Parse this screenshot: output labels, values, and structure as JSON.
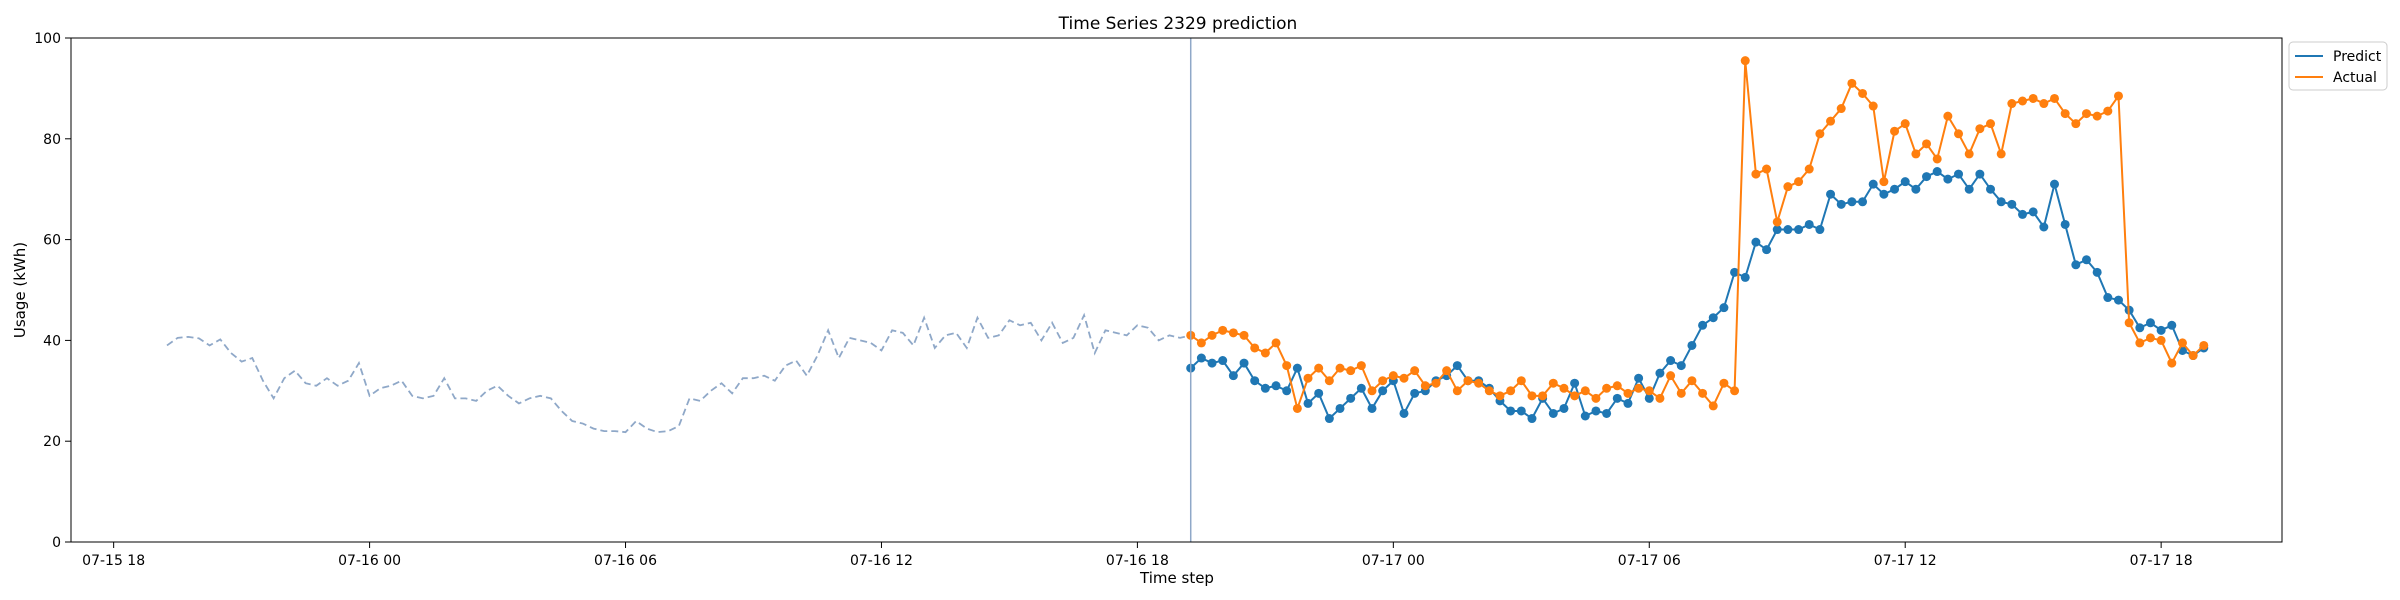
{
  "chart_data": {
    "type": "line",
    "title": "Time Series 2329 prediction",
    "xlabel": "Time step",
    "ylabel": "Usage (kWh)",
    "ylim": [
      0,
      100
    ],
    "yticks": [
      0,
      20,
      40,
      60,
      80,
      100
    ],
    "xlim": [
      "07-15 17:00",
      "07-17 20:50"
    ],
    "xticks": [
      "07-15 18",
      "07-16 00",
      "07-16 06",
      "07-16 12",
      "07-16 18",
      "07-17 00",
      "07-17 06",
      "07-17 12",
      "07-17 18"
    ],
    "grid": false,
    "legend_position": "top-right",
    "forecast_start": "07-16 19:15",
    "history": {
      "start": "07-15 19:15",
      "step_minutes": 15,
      "color": "#8fa8c8",
      "style": "dashed",
      "values": [
        39,
        40.5,
        40.7,
        40.4,
        39,
        40.2,
        37.5,
        35.8,
        36.5,
        32,
        28.5,
        32.5,
        34,
        31.5,
        31,
        32.5,
        31,
        32,
        35.5,
        29,
        30.5,
        31,
        32,
        29,
        28.5,
        29,
        32.5,
        28.5,
        28.5,
        28,
        30,
        31,
        29,
        27.5,
        28.5,
        29,
        28.5,
        26,
        24,
        23.5,
        22.5,
        22,
        22,
        21.8,
        24,
        22.5,
        21.8,
        22,
        23,
        28.5,
        28,
        30,
        31.5,
        29.5,
        32.5,
        32.5,
        33,
        32,
        35,
        36,
        33,
        37,
        42,
        36.5,
        40.5,
        40,
        39.5,
        38,
        42,
        41.5,
        39,
        44.5,
        38.5,
        41,
        41.5,
        38.5,
        44.5,
        40.5,
        41,
        44,
        43,
        43.5,
        40,
        43.5,
        39.5,
        40.5,
        45,
        37.5,
        42,
        41.5,
        41,
        43,
        42.5,
        40,
        41,
        40.5,
        41
      ]
    },
    "series": [
      {
        "name": "Predict",
        "color": "#1f77b4",
        "start": "07-16 19:15",
        "step_minutes": 15,
        "values": [
          34.5,
          36.5,
          35.5,
          36,
          33,
          35.5,
          32,
          30.5,
          31,
          30,
          34.5,
          27.5,
          29.5,
          24.5,
          26.5,
          28.5,
          30.5,
          26.5,
          30,
          32,
          25.5,
          29.5,
          30,
          32,
          33,
          35,
          32,
          32,
          30.5,
          28,
          26,
          26,
          24.5,
          28.5,
          25.5,
          26.5,
          31.5,
          25,
          26,
          25.5,
          28.5,
          27.5,
          32.5,
          28.5,
          33.5,
          36,
          35,
          39,
          43,
          44.5,
          46.5,
          53.5,
          52.5,
          59.5,
          58,
          62,
          62,
          62,
          63,
          62,
          69,
          67,
          67.5,
          67.5,
          71,
          69,
          70,
          71.5,
          70,
          72.5,
          73.5,
          72,
          73,
          70,
          73,
          70,
          67.5,
          67,
          65,
          65.5,
          62.5,
          71,
          63,
          55,
          56,
          53.5,
          48.5,
          48,
          46,
          42.5,
          43.5,
          42,
          43,
          38,
          37,
          38.5
        ]
      },
      {
        "name": "Actual",
        "color": "#ff7f0e",
        "start": "07-16 19:15",
        "step_minutes": 15,
        "values": [
          41,
          39.5,
          41,
          42,
          41.5,
          41,
          38.5,
          37.5,
          39.5,
          35,
          26.5,
          32.5,
          34.5,
          32,
          34.5,
          34,
          35,
          30,
          32,
          33,
          32.5,
          34,
          31,
          31.5,
          34,
          30,
          32,
          31.5,
          30,
          29,
          30,
          32,
          29,
          29,
          31.5,
          30.5,
          29,
          30,
          28.5,
          30.5,
          31,
          29.5,
          30.5,
          30,
          28.5,
          33,
          29.5,
          32,
          29.5,
          27,
          31.5,
          30,
          95.5,
          73,
          74,
          63.5,
          70.5,
          71.5,
          74,
          81,
          83.5,
          86,
          91,
          89,
          86.5,
          71.5,
          81.5,
          83,
          77,
          79,
          76,
          84.5,
          81,
          77,
          82,
          83,
          77,
          87,
          87.5,
          88,
          87,
          88,
          85,
          83,
          85,
          84.5,
          85.5,
          88.5,
          43.5,
          39.5,
          40.5,
          40,
          35.5,
          39.5,
          37,
          39
        ]
      }
    ]
  }
}
